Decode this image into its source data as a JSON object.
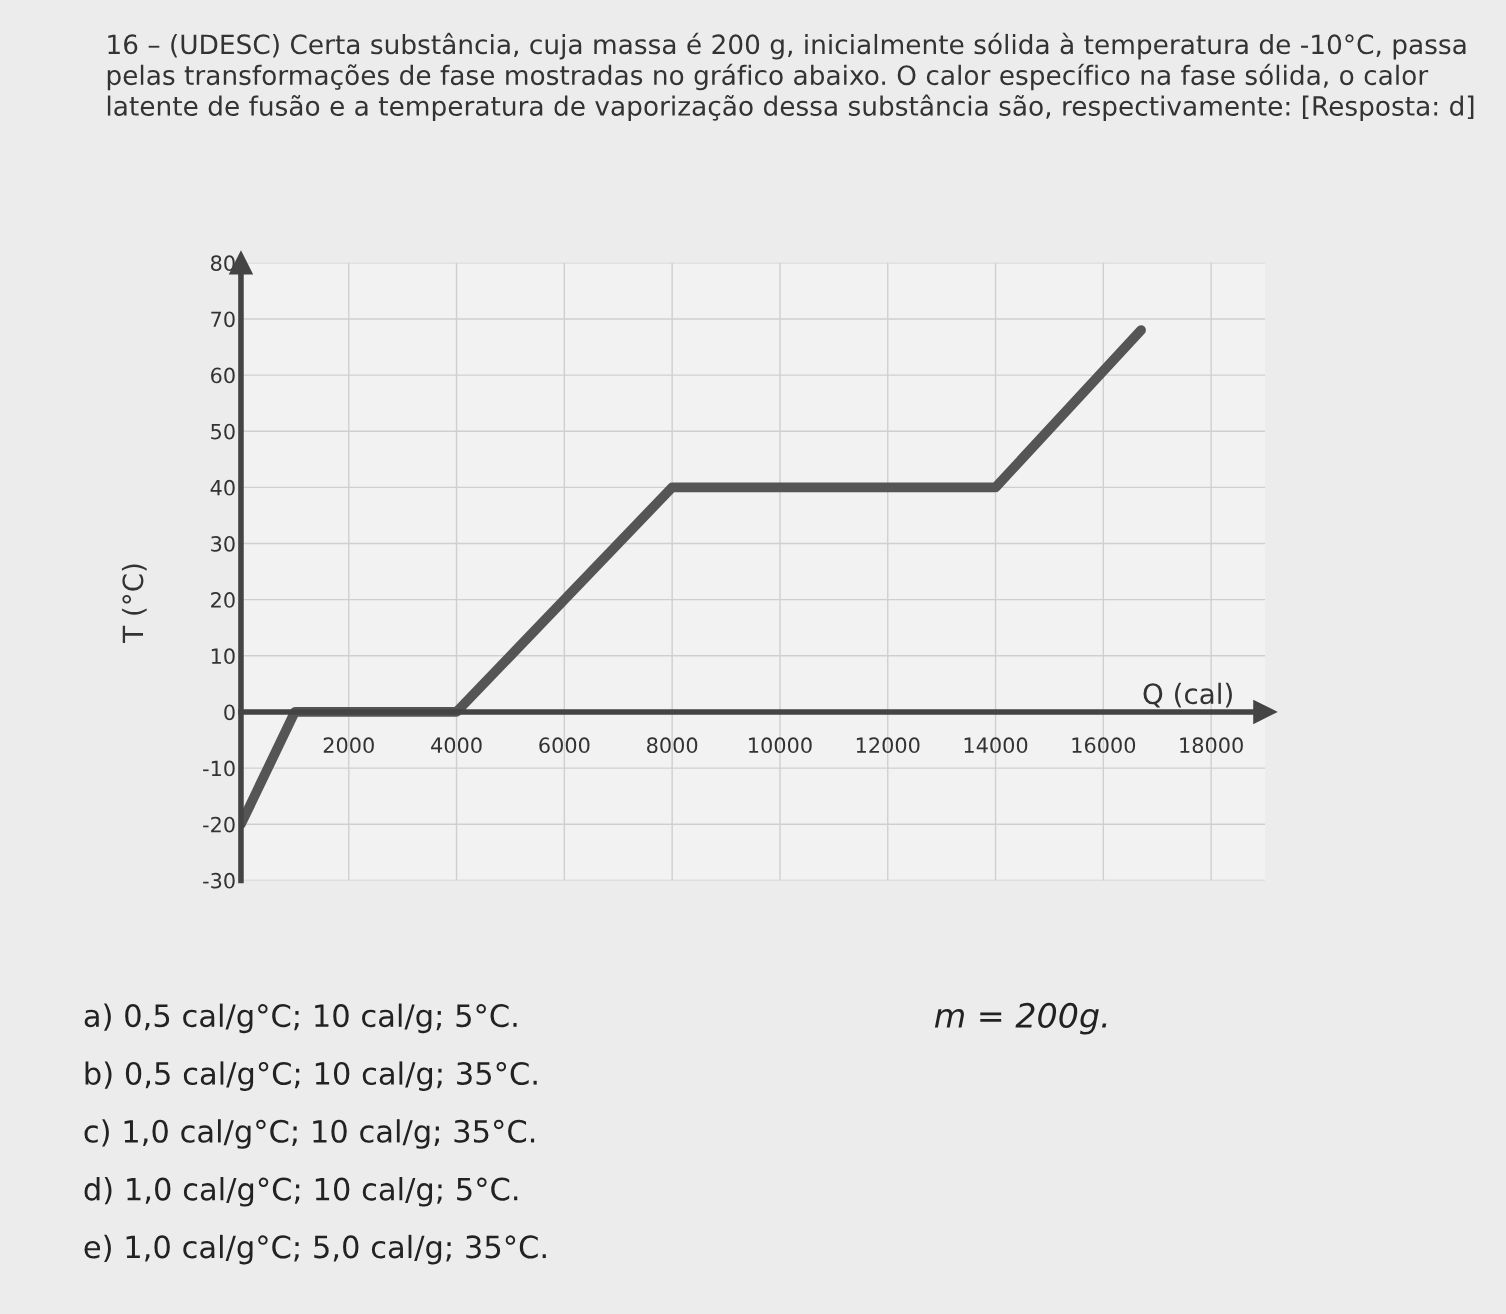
{
  "chart_data": {
    "type": "line",
    "title": "16 – (UDESC) Certa substância, cuja massa é 200 g, inicialmente sólida à temperatura de -10°C, passa pelas transformações de fase mostradas no gráfico abaixo. O calor específico na fase sólida, o calor latente de fusão e a temperatura de vaporização dessa substância são, respectivamente: [Resposta: d]",
    "xlabel": "Q (cal)",
    "ylabel": "T (°C)",
    "x": [
      0,
      1000,
      4000,
      8000,
      14000,
      16700
    ],
    "series": [
      {
        "color": "#555555",
        "values": [
          -20,
          0,
          0,
          40,
          40,
          68
        ]
      }
    ],
    "xlim": [
      0,
      19000
    ],
    "ylim": [
      -30,
      80
    ],
    "xticks": [
      2000,
      4000,
      6000,
      8000,
      10000,
      12000,
      14000,
      16000,
      18000
    ],
    "yticks": [
      -30,
      -20,
      -10,
      0,
      10,
      20,
      30,
      40,
      50,
      60,
      70,
      80
    ],
    "grid": true,
    "marker": "none",
    "line_style": "solid",
    "annotations": [
      "a) 0,5 cal/g°C; 10 cal/g; 5°C.",
      "b) 0,5 cal/g°C; 10 cal/g; 35°C.",
      "c) 1,0 cal/g°C; 10 cal/g; 35°C.",
      "d) 1,0 cal/g°C; 10 cal/g; 5°C.",
      "e) 1,0 cal/g°C; 5,0 cal/g; 35°C.",
      "m = 200g."
    ]
  }
}
